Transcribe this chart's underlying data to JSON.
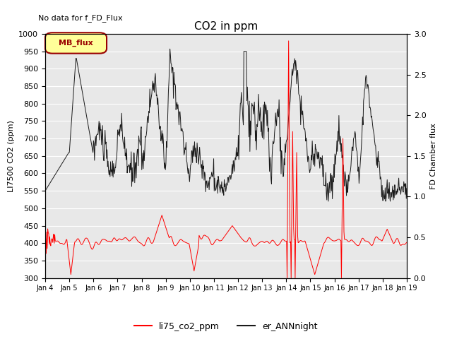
{
  "title": "CO2 in ppm",
  "top_left_text": "No data for f_FD_Flux",
  "ylabel_left": "LI7500 CO2 (ppm)",
  "ylabel_right": "FD Chamber flux",
  "ylim_left": [
    300,
    1000
  ],
  "ylim_right": [
    0.0,
    3.0
  ],
  "xlim": [
    0,
    360
  ],
  "xtick_labels": [
    "Jan 4",
    "Jan 5",
    "Jan 6",
    "Jan 7",
    "Jan 8",
    "Jan 9",
    "Jan 10",
    "Jan 11",
    "Jan 12",
    "Jan 13",
    "Jan 14",
    "Jan 15",
    "Jan 16",
    "Jan 17",
    "Jan 18",
    "Jan 19"
  ],
  "xtick_positions": [
    0,
    24,
    48,
    72,
    96,
    120,
    144,
    168,
    192,
    216,
    240,
    264,
    288,
    312,
    336,
    360
  ],
  "line_red_label": "li75_co2_ppm",
  "line_black_label": "er_ANNnight",
  "mb_flux_label": "MB_flux",
  "background_color": "#e8e8e8",
  "fig_background": "#ffffff",
  "grid_color": "#ffffff",
  "line_red_color": "#ff0000",
  "line_black_color": "#1a1a1a"
}
